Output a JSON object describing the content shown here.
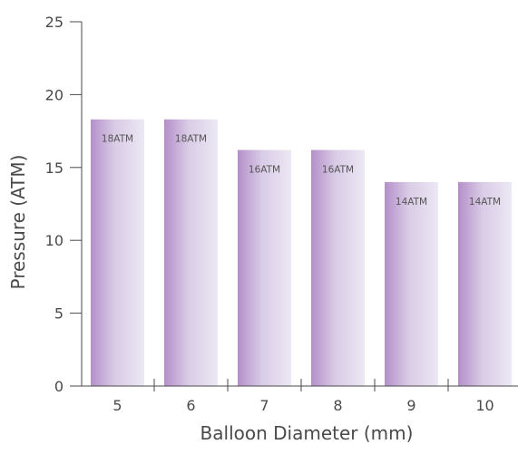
{
  "chart_data": {
    "type": "bar",
    "title": "",
    "xlabel": "Balloon Diameter (mm)",
    "ylabel": "Pressure (ATM)",
    "categories": [
      "5",
      "6",
      "7",
      "8",
      "9",
      "10"
    ],
    "values": [
      18.3,
      18.3,
      16.2,
      16.2,
      14,
      14
    ],
    "data_labels": [
      "18ATM",
      "18ATM",
      "16ATM",
      "16ATM",
      "14ATM",
      "14ATM"
    ],
    "yticks": [
      "0",
      "5",
      "10",
      "15",
      "20",
      "25"
    ],
    "ylim": [
      0,
      25
    ],
    "grid": false,
    "legend": "none",
    "colors": {
      "bar_edge": "#b48fc9",
      "bar_mid": "#d9cbe6",
      "bar_light": "#ece8f4",
      "axis": "#4a4a4a",
      "text": "#4a4a4a",
      "label": "#555555"
    }
  }
}
